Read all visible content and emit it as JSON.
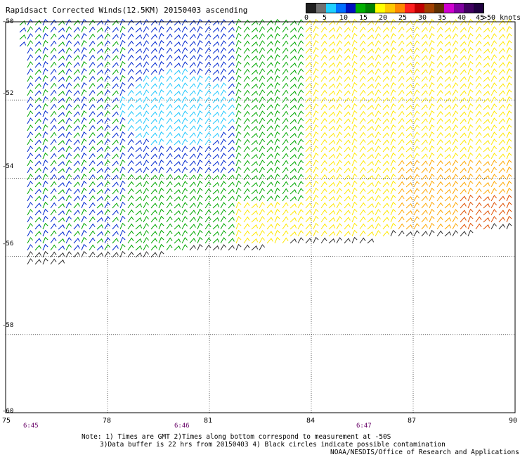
{
  "header": {
    "title": "Rapidsact Corrected Winds(12.5KM) 20150403 ascending"
  },
  "legend": {
    "colors": [
      "#202020",
      "#707070",
      "#1fd0ff",
      "#0070ff",
      "#0010c0",
      "#00b000",
      "#008000",
      "#ffff00",
      "#ffc800",
      "#ff8800",
      "#ff2020",
      "#c00000",
      "#a04000",
      "#603000",
      "#d000d0",
      "#8000a0",
      "#400060",
      "#200040"
    ],
    "labels": [
      "0",
      "5",
      "10",
      "15",
      "20",
      "25",
      "30",
      "35",
      "40",
      "45",
      ">50 knots"
    ]
  },
  "axes": {
    "lat_labels": [
      "-50",
      "-52",
      "-54",
      "-56",
      "-58",
      "-60"
    ],
    "lon_labels": [
      "75",
      "78",
      "81",
      "84",
      "87",
      "90"
    ],
    "time_labels": [
      "6:45",
      "6:46",
      "6:47"
    ]
  },
  "notes": {
    "line1": "Note: 1) Times are GMT 2)Times along bottom correspond to measurement at  -50S",
    "line2": "3)Data buffer is 22 hrs from 20150403 4) Black circles indicate possible contamination",
    "line3": "NOAA/NESDIS/Office of Research and Applications"
  },
  "map": {
    "lon_range": [
      75,
      90
    ],
    "lat_range": [
      -60,
      -50
    ],
    "speed_colors": {
      "0": "#303030",
      "5": "#1fc8ff",
      "10": "#0028d0",
      "15": "#00a800",
      "20": "#ffe800",
      "25": "#ffa800",
      "30": "#e05000"
    }
  }
}
